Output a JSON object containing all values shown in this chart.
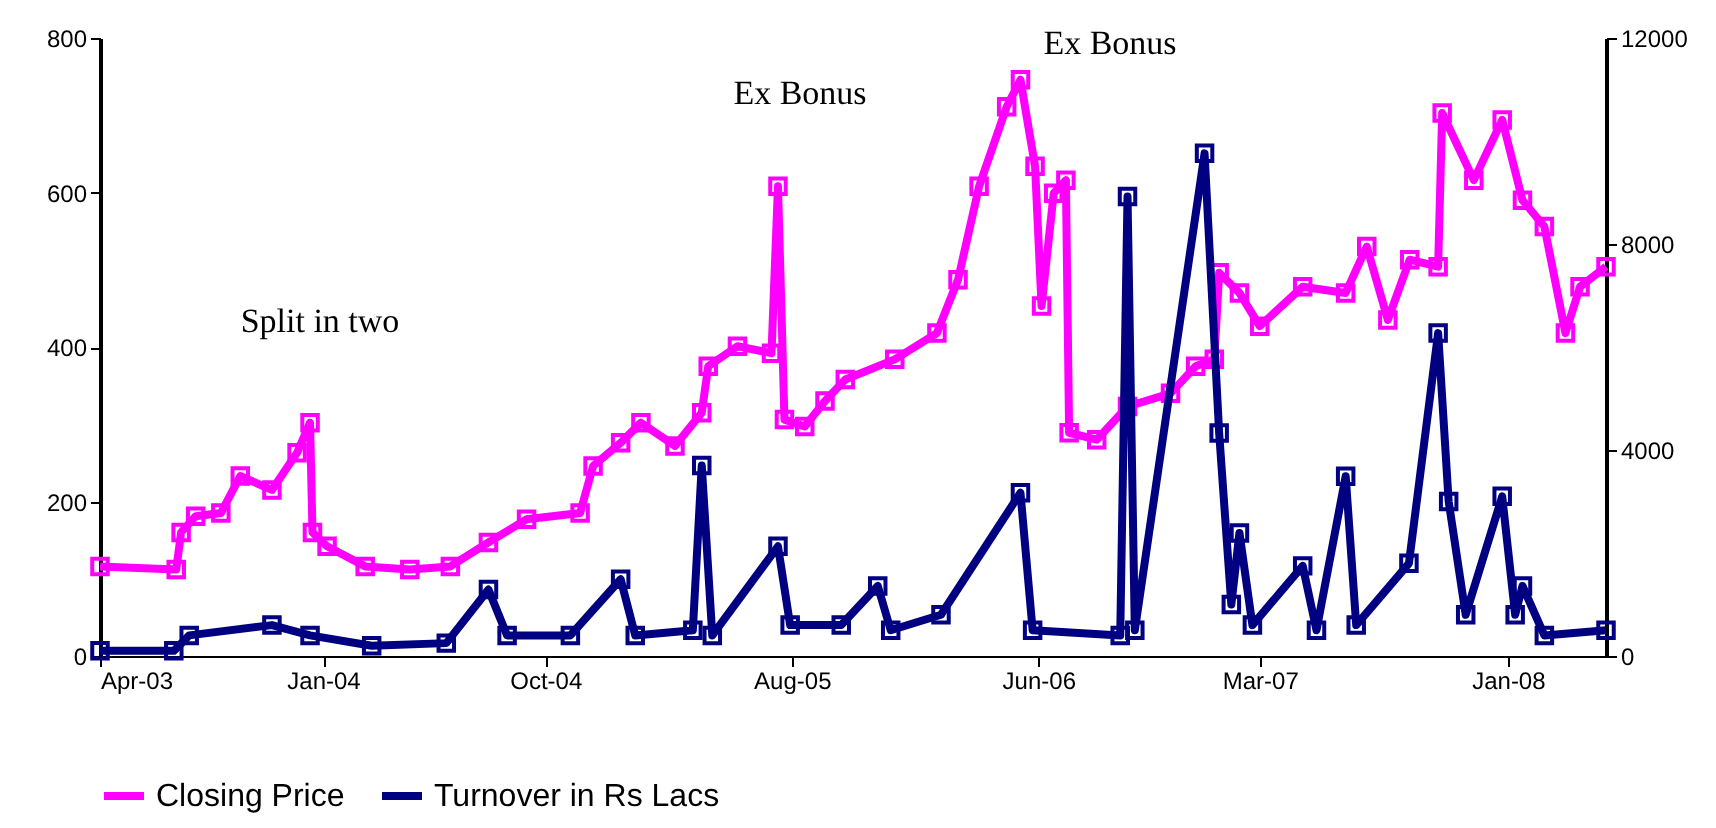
{
  "chart_data": {
    "type": "line",
    "xlim": [
      "2003-04-01",
      "2008-05-01"
    ],
    "xticks": [
      {
        "value": "2003-04-01",
        "label": "Apr-03"
      },
      {
        "value": "2004-01-01",
        "label": "Jan-04"
      },
      {
        "value": "2004-10-01",
        "label": "Oct-04"
      },
      {
        "value": "2005-08-01",
        "label": "Aug-05"
      },
      {
        "value": "2006-06-01",
        "label": "Jun-06"
      },
      {
        "value": "2007-03-01",
        "label": "Mar-07"
      },
      {
        "value": "2008-01-01",
        "label": "Jan-08"
      }
    ],
    "ylim": [
      0,
      800
    ],
    "yticks": [
      0,
      200,
      400,
      600,
      800
    ],
    "y2lim": [
      0,
      12000
    ],
    "y2ticks": [
      0,
      4000,
      8000,
      12000
    ],
    "grid": false,
    "legend": "bottom",
    "marker": "square",
    "line_style": "solid",
    "annotations": [
      "Split in two",
      "Ex Bonus",
      "Ex Bonus"
    ],
    "series": [
      {
        "name": "Closing Price",
        "color": "#ff00ff",
        "x": [
          "2003-04-01",
          "2003-07-04",
          "2003-07-10",
          "2003-07-28",
          "2003-08-28",
          "2003-09-21",
          "2003-10-30",
          "2003-11-30",
          "2003-12-16",
          "2003-12-19",
          "2004-01-06",
          "2004-02-22",
          "2004-04-17",
          "2004-06-06",
          "2004-07-23",
          "2004-09-08",
          "2004-11-13",
          "2004-11-29",
          "2005-01-02",
          "2005-01-27",
          "2005-03-10",
          "2005-04-12",
          "2005-04-20",
          "2005-05-26",
          "2005-07-07",
          "2005-07-15",
          "2005-07-23",
          "2005-08-17",
          "2005-09-11",
          "2005-10-06",
          "2005-12-06",
          "2006-01-27",
          "2006-02-22",
          "2006-03-20",
          "2006-04-23",
          "2006-05-10",
          "2006-05-28",
          "2006-06-05",
          "2006-06-20",
          "2006-07-05",
          "2006-07-09",
          "2006-08-12",
          "2006-09-19",
          "2006-11-11",
          "2006-12-12",
          "2007-01-04",
          "2007-01-10",
          "2007-02-04",
          "2007-03-01",
          "2007-04-23",
          "2007-06-15",
          "2007-07-11",
          "2007-08-06",
          "2007-09-02",
          "2007-10-07",
          "2007-10-12",
          "2007-11-20",
          "2007-12-25",
          "2008-01-19",
          "2008-02-15",
          "2008-03-12",
          "2008-03-30",
          "2008-05-01"
        ],
        "values": [
          116,
          112,
          160,
          181,
          185,
          233,
          215,
          263,
          302,
          160,
          142,
          116,
          112,
          116,
          147,
          177,
          185,
          246,
          276,
          302,
          272,
          315,
          375,
          401,
          392,
          608,
          306,
          297,
          330,
          358,
          384,
          418,
          487,
          608,
          711,
          746,
          634,
          453,
          599,
          616,
          289,
          280,
          323,
          340,
          375,
          384,
          496,
          470,
          427,
          478,
          470,
          530,
          435,
          513,
          504,
          703,
          616,
          694,
          590,
          556,
          418,
          478,
          504
        ]
      },
      {
        "name": "Turnover in Rs Lacs",
        "color": "#000080",
        "axis": "y2",
        "x": [
          "2003-04-01",
          "2003-07-01",
          "2003-07-20",
          "2003-10-30",
          "2003-12-16",
          "2004-03-01",
          "2004-06-01",
          "2004-07-23",
          "2004-08-15",
          "2004-11-01",
          "2005-01-02",
          "2005-01-20",
          "2005-04-01",
          "2005-04-12",
          "2005-04-25",
          "2005-07-15",
          "2005-07-30",
          "2005-10-01",
          "2005-11-15",
          "2005-12-01",
          "2006-02-01",
          "2006-05-10",
          "2006-05-25",
          "2006-09-10",
          "2006-09-19",
          "2006-09-28",
          "2006-12-23",
          "2007-01-10",
          "2007-01-25",
          "2007-02-04",
          "2007-02-20",
          "2007-04-23",
          "2007-05-10",
          "2007-06-15",
          "2007-06-28",
          "2007-09-01",
          "2007-10-07",
          "2007-10-20",
          "2007-11-10",
          "2007-12-25",
          "2008-01-10",
          "2008-01-19",
          "2008-02-15",
          "2008-05-01"
        ],
        "values": [
          100,
          100,
          400,
          600,
          400,
          200,
          250,
          1290,
          400,
          400,
          1490,
          400,
          500,
          3700,
          400,
          2130,
          600,
          600,
          1360,
          500,
          800,
          3170,
          500,
          400,
          8920,
          500,
          9760,
          4330,
          1000,
          2390,
          600,
          1750,
          500,
          3490,
          600,
          1800,
          6270,
          3000,
          800,
          3100,
          800,
          1360,
          400,
          500
        ]
      }
    ]
  }
}
